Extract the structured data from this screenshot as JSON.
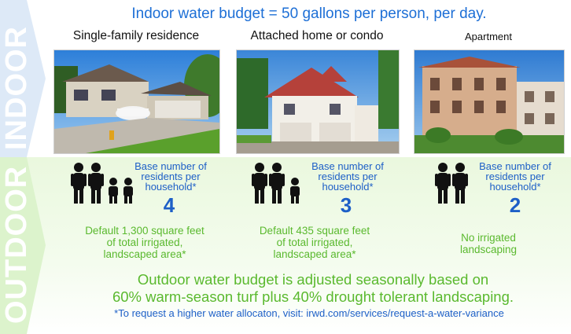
{
  "headline": "Indoor water budget = 50 gallons per person, per day.",
  "side_labels": {
    "indoor": "INDOOR",
    "outdoor": "OUTDOOR"
  },
  "columns": [
    {
      "title": "Single-family residence",
      "base_label": "Base number of\nresidents per\nhousehold*",
      "base_number": "4",
      "landscape": "Default 1,300 square feet\nof total irrigated,\nlandscaped area*"
    },
    {
      "title": "Attached home or condo",
      "base_label": "Base number of\nresidents per\nhousehold*",
      "base_number": "3",
      "landscape": "Default 435 square feet\nof total irrigated,\nlandscaped area*"
    },
    {
      "title": "Apartment",
      "base_label": "Base number of\nresidents per\nhousehold*",
      "base_number": "2",
      "landscape": "No irrigated\nlandscaping"
    }
  ],
  "outdoor_text": {
    "line1": "Outdoor water budget is adjusted seasonally based on",
    "line2": "60% warm-season turf plus 40% drought tolerant landscaping."
  },
  "footnote": "*To request a higher water allocaton, visit: irwd.com/services/request-a-water-variance",
  "colors": {
    "blue": "#1d6fd6",
    "green": "#5ab92e",
    "indoor_band": "#d6e6f8",
    "outdoor_band": "#d8f2c6"
  }
}
